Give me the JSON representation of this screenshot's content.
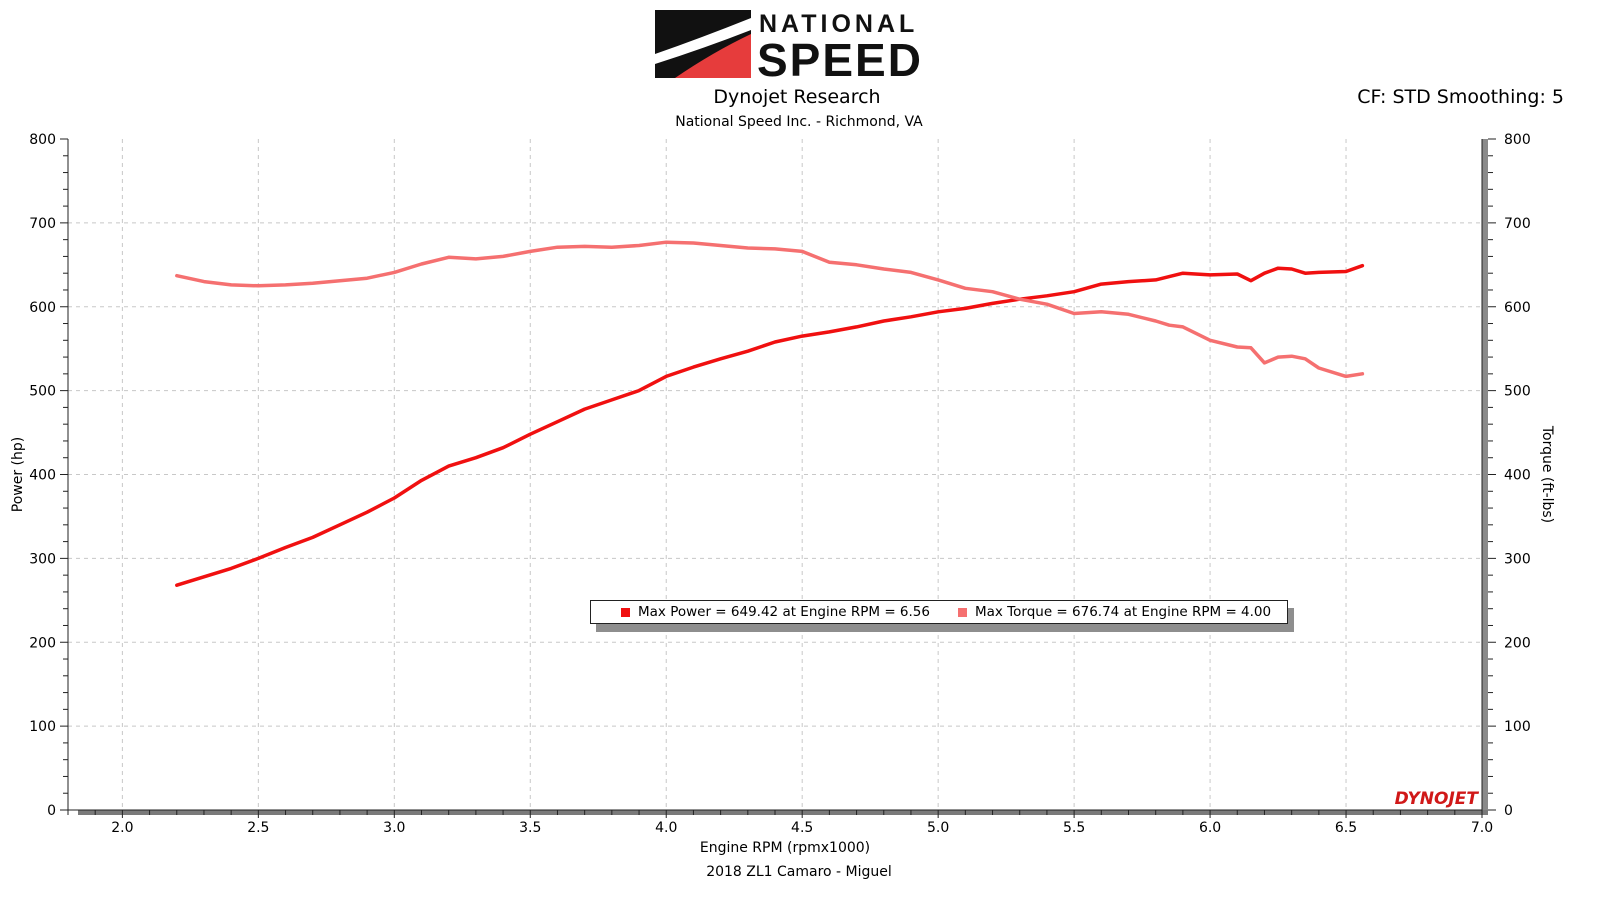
{
  "header": {
    "logo_line1": "NATIONAL",
    "logo_line2": "SPEED",
    "title": "Dynojet Research",
    "subtitle": "National Speed Inc. - Richmond, VA",
    "cf_label": "CF: STD Smoothing: 5"
  },
  "footer": {
    "run_label": "2018 ZL1 Camaro - Miguel"
  },
  "brand_mark": "DYNOJET",
  "legend": {
    "power": "Max Power = 649.42 at Engine RPM = 6.56",
    "torque": "Max Torque = 676.74 at Engine RPM = 4.00"
  },
  "colors": {
    "power": "#f01010",
    "torque": "#f57070",
    "grid": "#c8c8c8"
  },
  "chart_data": {
    "type": "line",
    "xlabel": "Engine RPM (rpmx1000)",
    "ylabel": "Power (hp)",
    "y2label": "Torque (ft-lbs)",
    "xlim": [
      1.8,
      7.0
    ],
    "ylim": [
      0,
      800
    ],
    "y2lim": [
      0,
      800
    ],
    "x_ticks": [
      "2.0",
      "2.5",
      "3.0",
      "3.5",
      "4.0",
      "4.5",
      "5.0",
      "5.5",
      "6.0",
      "6.5",
      "7.0"
    ],
    "y_ticks": [
      "0",
      "100",
      "200",
      "300",
      "400",
      "500",
      "600",
      "700",
      "800"
    ],
    "grid": true,
    "legend_position": "center",
    "series": [
      {
        "name": "Max Power",
        "axis": "left",
        "x": [
          2.2,
          2.3,
          2.4,
          2.5,
          2.6,
          2.7,
          2.8,
          2.9,
          3.0,
          3.1,
          3.2,
          3.3,
          3.4,
          3.5,
          3.6,
          3.7,
          3.8,
          3.9,
          4.0,
          4.1,
          4.2,
          4.3,
          4.4,
          4.5,
          4.6,
          4.7,
          4.8,
          4.9,
          5.0,
          5.1,
          5.2,
          5.3,
          5.4,
          5.5,
          5.6,
          5.7,
          5.8,
          5.85,
          5.9,
          6.0,
          6.1,
          6.15,
          6.2,
          6.25,
          6.3,
          6.35,
          6.4,
          6.5,
          6.56
        ],
        "values": [
          268,
          278,
          288,
          300,
          313,
          325,
          340,
          355,
          372,
          393,
          410,
          420,
          432,
          448,
          463,
          478,
          489,
          500,
          517,
          528,
          538,
          547,
          558,
          565,
          570,
          576,
          583,
          588,
          594,
          598,
          604,
          609,
          613,
          618,
          627,
          630,
          632,
          636,
          640,
          638,
          639,
          631,
          640,
          646,
          645,
          640,
          641,
          642,
          649
        ]
      },
      {
        "name": "Max Torque",
        "axis": "right",
        "x": [
          2.2,
          2.3,
          2.4,
          2.5,
          2.6,
          2.7,
          2.8,
          2.9,
          3.0,
          3.1,
          3.2,
          3.3,
          3.4,
          3.5,
          3.6,
          3.7,
          3.8,
          3.9,
          4.0,
          4.1,
          4.2,
          4.3,
          4.4,
          4.5,
          4.6,
          4.7,
          4.8,
          4.9,
          5.0,
          5.1,
          5.2,
          5.3,
          5.4,
          5.5,
          5.6,
          5.7,
          5.8,
          5.85,
          5.9,
          6.0,
          6.1,
          6.15,
          6.2,
          6.25,
          6.3,
          6.35,
          6.4,
          6.5,
          6.56
        ],
        "values": [
          637,
          630,
          626,
          625,
          626,
          628,
          631,
          634,
          641,
          651,
          659,
          657,
          660,
          666,
          671,
          672,
          671,
          673,
          677,
          676,
          673,
          670,
          669,
          666,
          653,
          650,
          645,
          641,
          632,
          622,
          618,
          609,
          603,
          592,
          594,
          591,
          583,
          578,
          576,
          560,
          552,
          551,
          533,
          540,
          541,
          538,
          527,
          517,
          520
        ]
      }
    ]
  }
}
